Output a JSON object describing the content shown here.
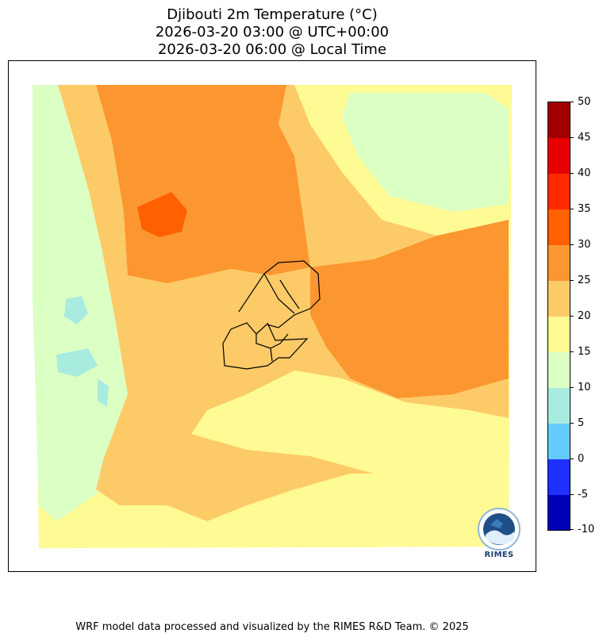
{
  "title": {
    "line1": "Djibouti 2m Temperature (°C)",
    "line2": "2026-03-20 03:00 @ UTC+00:00",
    "line3": "2026-03-20 06:00 @ Local Time"
  },
  "colorbar": {
    "levels": [
      "50",
      "45",
      "40",
      "35",
      "30",
      "25",
      "20",
      "15",
      "10",
      "5",
      "0",
      "-5",
      "-10"
    ],
    "colors": [
      "#a00000",
      "#e80000",
      "#ff2a00",
      "#ff6000",
      "#fc9630",
      "#fdca68",
      "#fefa94",
      "#dcffc4",
      "#a8ece0",
      "#64ccfc",
      "#2030ff",
      "#0000b8"
    ]
  },
  "map_colors": {
    "yellow": "#fefa94",
    "light_orange": "#fdca68",
    "orange": "#fc9630",
    "dark_orange": "#ff6000",
    "light_green": "#dcffc4",
    "cyan": "#a8ece0",
    "border": "#000000"
  },
  "logo": {
    "text": "RIMES"
  },
  "footer": "WRF model data processed and visualized by the RIMES R&D Team. © 2025"
}
